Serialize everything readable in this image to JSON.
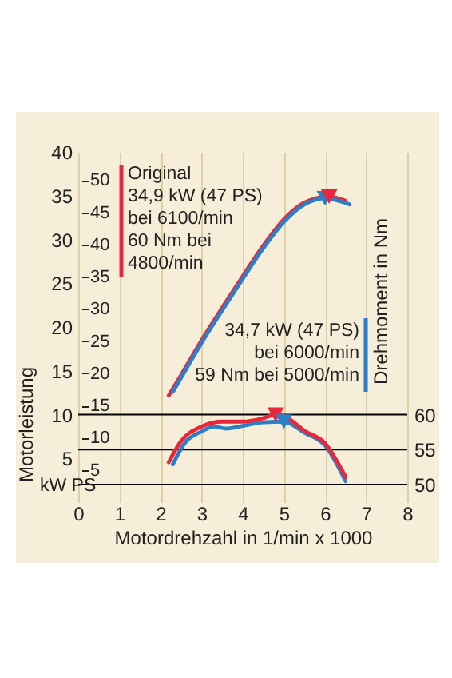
{
  "chart_data": {
    "type": "line",
    "xlabel": "Motordrehzahl in 1/min x 1000",
    "ylabel": "Motorleistung",
    "y2label": "Drehmoment in Nm",
    "xlim": [
      0,
      8
    ],
    "xticks": [
      0,
      1,
      2,
      3,
      4,
      5,
      6,
      7,
      8
    ],
    "ylim": [
      0,
      40
    ],
    "yticks": [
      5,
      10,
      15,
      20,
      25,
      30,
      35,
      40
    ],
    "y2lim": [
      47.5,
      97.5
    ],
    "y2ticks": [
      50,
      55,
      60
    ],
    "y3lim": [
      0,
      54.4
    ],
    "y3ticks": [
      5,
      10,
      15,
      20,
      25,
      30,
      35,
      40,
      45,
      50
    ],
    "grid": "x",
    "legend": "top left",
    "line_style": "solid",
    "series": [
      {
        "name": "Original",
        "color": "#e8283a",
        "x": [
          2.2,
          2.5,
          3,
          3.5,
          4,
          4.5,
          5,
          5.5,
          6.1,
          6.5
        ],
        "values": [
          12.2,
          14.5,
          18.5,
          22.2,
          25.8,
          29.3,
          32.3,
          34.2,
          34.9,
          34.4
        ]
      },
      {
        "color": "#2a7fc6",
        "x": [
          2.3,
          2.5,
          3,
          3.5,
          4,
          4.5,
          5,
          5.5,
          6,
          6.6
        ],
        "values": [
          12.6,
          14.2,
          18.2,
          21.9,
          25.5,
          29.0,
          32.0,
          34.0,
          34.7,
          34.0
        ]
      },
      {
        "axis": "y2",
        "color": "#2a7fc6",
        "x": [
          2.3,
          2.6,
          3,
          3.3,
          3.6,
          4,
          4.5,
          5,
          5.5,
          6,
          6.5
        ],
        "values": [
          52.9,
          56,
          57.6,
          58.3,
          58,
          58.4,
          58.9,
          59,
          57.4,
          55.6,
          50.5
        ]
      },
      {
        "axis": "y2",
        "color": "#e8283a",
        "x": [
          2.2,
          2.5,
          3,
          3.5,
          4,
          4.5,
          4.8,
          5,
          5.5,
          6,
          6.5
        ],
        "values": [
          53.2,
          56.2,
          58.3,
          59,
          59,
          59.5,
          60,
          59.8,
          57.7,
          55.9,
          51.1
        ]
      },
      {
        "type": "scatter",
        "marker": "triangle",
        "color": "#2a7fc6",
        "x": [
          6
        ],
        "values": [
          34.7
        ]
      },
      {
        "type": "scatter",
        "marker": "triangle",
        "color": "#e8283a",
        "x": [
          6.1
        ],
        "values": [
          34.9
        ]
      },
      {
        "type": "scatter",
        "marker": "triangle",
        "axis": "y2",
        "color": "#e8283a",
        "x": [
          4.8
        ],
        "values": [
          60
        ]
      },
      {
        "type": "scatter",
        "marker": "triangle",
        "axis": "y2",
        "color": "#2a7fc6",
        "x": [
          5
        ],
        "values": [
          59
        ]
      }
    ],
    "ref_lines": [
      {
        "axis": "y2",
        "value": 50,
        "color": "#000000"
      },
      {
        "axis": "y2",
        "value": 55,
        "color": "#000000"
      },
      {
        "axis": "y2",
        "value": 60,
        "color": "#000000"
      }
    ],
    "annotations": [
      "34,9 kW (47 PS)\nbei 6100/min\n60 Nm bei\n4800/min",
      "34,7 kW (47 PS)\nbei 6000/min\n59 Nm bei 5000/min",
      "kW PS"
    ]
  }
}
